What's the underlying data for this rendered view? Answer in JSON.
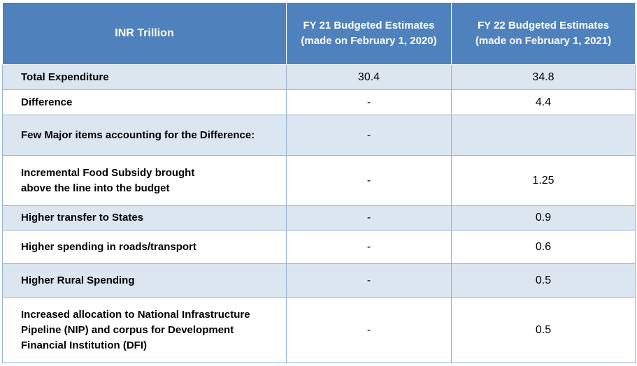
{
  "header": {
    "col1": "INR Trillion",
    "col2_line1": "FY 21 Budgeted Estimates",
    "col2_line2": "(made on February 1, 2020)",
    "col3_line1": "FY 22 Budgeted Estimates",
    "col3_line2": "(made on February 1, 2021)"
  },
  "rows": [
    {
      "label": "Total Expenditure",
      "fy21": "30.4",
      "fy22": "34.8"
    },
    {
      "label": "Difference",
      "fy21": "-",
      "fy22": "4.4"
    },
    {
      "label": "Few Major items accounting for the Difference:",
      "fy21": "-",
      "fy22": ""
    },
    {
      "label_line1": "Incremental Food Subsidy brought",
      "label_line2": "above the line into the budget",
      "fy21": "-",
      "fy22": "1.25"
    },
    {
      "label": "Higher transfer to States",
      "fy21": "-",
      "fy22": "0.9"
    },
    {
      "label": "Higher spending in roads/transport",
      "fy21": "-",
      "fy22": "0.6"
    },
    {
      "label": "Higher Rural Spending",
      "fy21": "-",
      "fy22": "0.5"
    },
    {
      "label_line1": "Increased allocation to National Infrastructure",
      "label_line2": "Pipeline (NIP) and corpus for Development",
      "label_line3": "Financial Institution (DFI)",
      "fy21": "-",
      "fy22": "0.5"
    }
  ]
}
